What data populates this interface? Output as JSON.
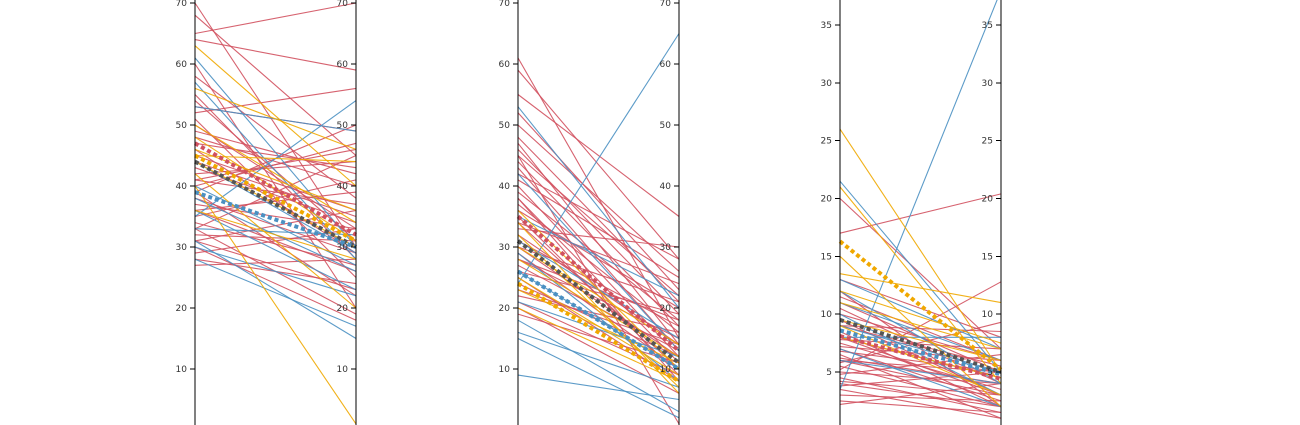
{
  "colors": {
    "red": "#d1515f",
    "blue": "#4a90c2",
    "yellow": "#f0a800",
    "dark": "#555555"
  },
  "chart_data": [
    {
      "type": "line",
      "ylim": [
        1,
        70
      ],
      "yticks": [
        10,
        20,
        30,
        40,
        50,
        60,
        70
      ],
      "series": [
        {
          "group": "red",
          "values": [
            [
              70,
              30
            ],
            [
              65,
              70
            ],
            [
              64,
              59
            ],
            [
              54,
              31
            ],
            [
              53,
              49
            ],
            [
              52,
              56
            ],
            [
              51,
              25
            ],
            [
              49,
              42
            ],
            [
              48,
              40
            ],
            [
              47,
              43
            ],
            [
              45,
              36
            ],
            [
              44,
              35
            ],
            [
              42,
              44
            ],
            [
              41,
              37
            ],
            [
              40,
              47
            ],
            [
              39,
              22
            ],
            [
              38,
              29
            ],
            [
              37,
              33
            ],
            [
              36,
              39
            ],
            [
              35,
              41
            ],
            [
              34,
              27
            ],
            [
              33,
              45
            ],
            [
              32,
              31
            ],
            [
              31,
              23
            ],
            [
              30,
              18
            ],
            [
              29,
              33
            ],
            [
              28,
              24
            ],
            [
              27,
              28
            ],
            [
              60,
              20
            ],
            [
              58,
              38
            ],
            [
              46,
              29
            ],
            [
              43,
              34
            ],
            [
              50,
              33
            ],
            [
              55,
              28
            ],
            [
              68,
              45
            ],
            [
              36,
              26
            ],
            [
              33,
              19
            ],
            [
              31,
              36
            ],
            [
              39,
              50
            ],
            [
              41,
              46
            ]
          ]
        },
        {
          "group": "blue",
          "values": [
            [
              61,
              30
            ],
            [
              57,
              28
            ],
            [
              53,
              49
            ],
            [
              40,
              27
            ],
            [
              38,
              26
            ],
            [
              36,
              23
            ],
            [
              33,
              32
            ],
            [
              31,
              15
            ],
            [
              30,
              22
            ],
            [
              28,
              17
            ],
            [
              35,
              54
            ],
            [
              44,
              29
            ]
          ]
        },
        {
          "group": "yellow",
          "values": [
            [
              63,
              40
            ],
            [
              56,
              46
            ],
            [
              48,
              31
            ],
            [
              46,
              36
            ],
            [
              44,
              30
            ],
            [
              40,
              1
            ],
            [
              42,
              20
            ],
            [
              45,
              44
            ],
            [
              36,
              28
            ],
            [
              50,
              34
            ]
          ]
        },
        {
          "group": "mean-red",
          "values": [
            [
              47,
              32
            ]
          ]
        },
        {
          "group": "mean-yellow",
          "values": [
            [
              45,
              31
            ]
          ]
        },
        {
          "group": "mean-dark",
          "values": [
            [
              44,
              30
            ]
          ]
        },
        {
          "group": "mean-blue",
          "values": [
            [
              39,
              30
            ]
          ]
        }
      ]
    },
    {
      "type": "line",
      "ylim": [
        1,
        70
      ],
      "yticks": [
        10,
        20,
        30,
        40,
        50,
        60,
        70
      ],
      "series": [
        {
          "group": "red",
          "values": [
            [
              61,
              15
            ],
            [
              59,
              28
            ],
            [
              55,
              35
            ],
            [
              48,
              21
            ],
            [
              47,
              14
            ],
            [
              46,
              19
            ],
            [
              45,
              22
            ],
            [
              44,
              17
            ],
            [
              43,
              13
            ],
            [
              42,
              28
            ],
            [
              41,
              25
            ],
            [
              40,
              12
            ],
            [
              39,
              18
            ],
            [
              38,
              11
            ],
            [
              37,
              16
            ],
            [
              36,
              20
            ],
            [
              35,
              9
            ],
            [
              34,
              24
            ],
            [
              33,
              30
            ],
            [
              32,
              14
            ],
            [
              31,
              17
            ],
            [
              30,
              21
            ],
            [
              29,
              10
            ],
            [
              28,
              15
            ],
            [
              27,
              13
            ],
            [
              26,
              19
            ],
            [
              25,
              8
            ],
            [
              24,
              12
            ],
            [
              22,
              16
            ],
            [
              20,
              6
            ],
            [
              19,
              11
            ],
            [
              50,
              26
            ],
            [
              52,
              23
            ],
            [
              45,
              1
            ],
            [
              38,
              8
            ],
            [
              34,
              10
            ],
            [
              30,
              12
            ],
            [
              28,
              18
            ],
            [
              23,
              14
            ],
            [
              21,
              9
            ]
          ]
        },
        {
          "group": "blue",
          "values": [
            [
              53,
              20
            ],
            [
              42,
              13
            ],
            [
              35,
              22
            ],
            [
              26,
              10
            ],
            [
              24,
              65
            ],
            [
              21,
              12
            ],
            [
              18,
              3
            ],
            [
              16,
              7
            ],
            [
              15,
              2
            ],
            [
              9,
              5
            ],
            [
              31,
              15
            ],
            [
              29,
              8
            ]
          ]
        },
        {
          "group": "yellow",
          "values": [
            [
              36,
              10
            ],
            [
              32,
              7
            ],
            [
              30,
              14
            ],
            [
              28,
              12
            ],
            [
              25,
              9
            ],
            [
              23,
              11
            ],
            [
              20,
              8
            ],
            [
              34,
              6
            ]
          ]
        },
        {
          "group": "mean-red",
          "values": [
            [
              35,
              13
            ]
          ]
        },
        {
          "group": "mean-dark",
          "values": [
            [
              31,
              11
            ]
          ]
        },
        {
          "group": "mean-blue",
          "values": [
            [
              26,
              10
            ]
          ]
        },
        {
          "group": "mean-yellow",
          "values": [
            [
              24,
              8
            ]
          ]
        }
      ]
    },
    {
      "type": "line",
      "ylim": [
        1,
        38
      ],
      "yticks": [
        5,
        10,
        15,
        20,
        25,
        30,
        35
      ],
      "series": [
        {
          "group": "red",
          "values": [
            [
              20,
              7
            ],
            [
              17,
              20.4
            ],
            [
              13,
              8
            ],
            [
              11,
              5
            ],
            [
              10.5,
              4
            ],
            [
              10,
              6
            ],
            [
              9.5,
              3
            ],
            [
              9,
              5.5
            ],
            [
              8.5,
              2
            ],
            [
              8,
              4.5
            ],
            [
              7.8,
              7
            ],
            [
              7.5,
              3.5
            ],
            [
              7.2,
              6
            ],
            [
              7,
              2.5
            ],
            [
              6.8,
              5
            ],
            [
              6.5,
              1
            ],
            [
              6.2,
              4
            ],
            [
              6,
              3
            ],
            [
              5.8,
              9.3
            ],
            [
              5.5,
              2
            ],
            [
              5.2,
              12.8
            ],
            [
              5,
              4
            ],
            [
              4.8,
              6.5
            ],
            [
              4.5,
              1.5
            ],
            [
              4.2,
              3
            ],
            [
              4,
              2
            ],
            [
              3.8,
              5
            ],
            [
              3.5,
              1
            ],
            [
              3,
              2.5
            ],
            [
              2.5,
              1.5
            ],
            [
              2.2,
              4
            ],
            [
              9,
              8.5
            ],
            [
              11.5,
              6
            ],
            [
              8,
              3
            ],
            [
              6,
              5
            ],
            [
              12,
              2
            ]
          ]
        },
        {
          "group": "blue",
          "values": [
            [
              21.5,
              5
            ],
            [
              13,
              7
            ],
            [
              12,
              4
            ],
            [
              11,
              6
            ],
            [
              10,
              3
            ],
            [
              9,
              5
            ],
            [
              8,
              8
            ],
            [
              7,
              2
            ],
            [
              3.5,
              38
            ],
            [
              6,
              4
            ]
          ]
        },
        {
          "group": "yellow",
          "values": [
            [
              26,
              5
            ],
            [
              21,
              4
            ],
            [
              13.5,
              11
            ],
            [
              11,
              7
            ],
            [
              9.5,
              6
            ],
            [
              9,
              3
            ],
            [
              8,
              4.5
            ],
            [
              15,
              2
            ],
            [
              12,
              7.5
            ]
          ]
        },
        {
          "group": "mean-yellow",
          "values": [
            [
              16.3,
              5.2
            ]
          ]
        },
        {
          "group": "mean-dark",
          "values": [
            [
              9.5,
              5
            ]
          ]
        },
        {
          "group": "mean-blue",
          "values": [
            [
              8.6,
              4.8
            ]
          ]
        },
        {
          "group": "mean-red",
          "values": [
            [
              8.1,
              4.4
            ]
          ]
        }
      ]
    }
  ]
}
